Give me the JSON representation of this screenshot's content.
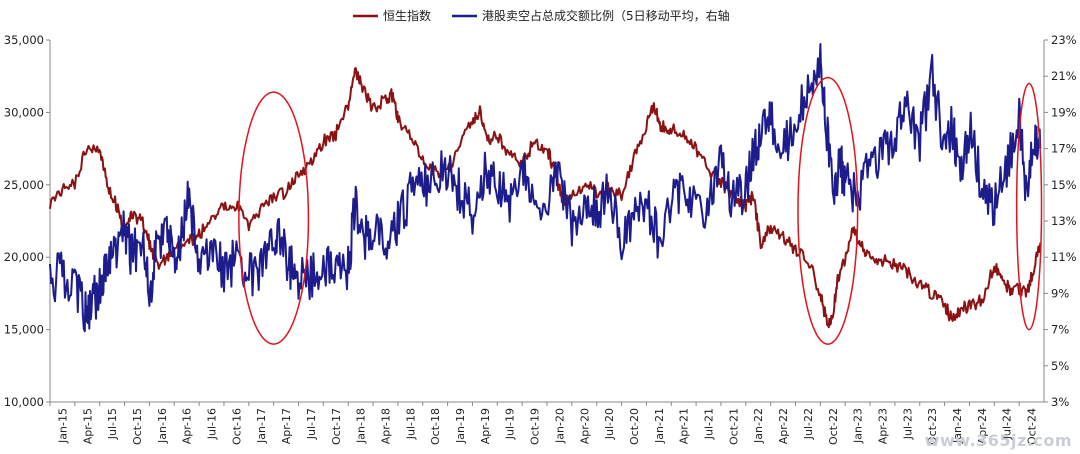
{
  "chart_data": {
    "type": "line",
    "legend": {
      "position": "top-center",
      "entries": [
        "恒生指数",
        "港股卖空占总成交额比例（5日移动平均，右轴"
      ]
    },
    "colors": {
      "hsi": "#8b1212",
      "short": "#1c1c8c",
      "ellipse": "#e0141e"
    },
    "y_left": {
      "min": 10000,
      "max": 35000,
      "ticks": [
        "10,000",
        "15,000",
        "20,000",
        "25,000",
        "30,000",
        "35,000"
      ]
    },
    "y_right": {
      "min": 3,
      "max": 23,
      "ticks": [
        "3%",
        "5%",
        "7%",
        "9%",
        "11%",
        "13%",
        "15%",
        "17%",
        "19%",
        "21%",
        "23%"
      ]
    },
    "categories": [
      "Jan-15",
      "Apr-15",
      "Jul-15",
      "Oct-15",
      "Jan-16",
      "Apr-16",
      "Jul-16",
      "Oct-16",
      "Jan-17",
      "Apr-17",
      "Jul-17",
      "Oct-17",
      "Jan-18",
      "Apr-18",
      "Jul-18",
      "Oct-18",
      "Jan-19",
      "Apr-19",
      "Jul-19",
      "Oct-19",
      "Jan-20",
      "Apr-20",
      "Jul-20",
      "Oct-20",
      "Jan-21",
      "Apr-21",
      "Jul-21",
      "Oct-21",
      "Jan-22",
      "Apr-22",
      "Jul-22",
      "Oct-22",
      "Jan-23",
      "Apr-23",
      "Jul-23",
      "Oct-23",
      "Jan-24",
      "Apr-24",
      "Jul-24",
      "Oct-24"
    ],
    "series": [
      {
        "name": "恒生指数",
        "axis": "left",
        "points": [
          [
            0,
            23800
          ],
          [
            0.5,
            24800
          ],
          [
            1,
            25000
          ],
          [
            1.5,
            27800
          ],
          [
            2,
            27500
          ],
          [
            2.3,
            25000
          ],
          [
            2.7,
            23500
          ],
          [
            3,
            21500
          ],
          [
            3.3,
            23000
          ],
          [
            3.7,
            22500
          ],
          [
            4,
            21000
          ],
          [
            4.3,
            19500
          ],
          [
            4.7,
            19800
          ],
          [
            5,
            20600
          ],
          [
            5.5,
            21000
          ],
          [
            6,
            21500
          ],
          [
            6.5,
            22800
          ],
          [
            7,
            23400
          ],
          [
            7.5,
            23600
          ],
          [
            8,
            22000
          ],
          [
            8.5,
            23300
          ],
          [
            9,
            24200
          ],
          [
            9.5,
            24500
          ],
          [
            10,
            25800
          ],
          [
            10.5,
            26500
          ],
          [
            11,
            28000
          ],
          [
            11.5,
            28500
          ],
          [
            12,
            30500
          ],
          [
            12.3,
            33000
          ],
          [
            12.6,
            31500
          ],
          [
            13,
            30200
          ],
          [
            13.5,
            31000
          ],
          [
            13.8,
            31200
          ],
          [
            14,
            29500
          ],
          [
            14.5,
            28500
          ],
          [
            15,
            26600
          ],
          [
            15.5,
            26000
          ],
          [
            16,
            25800
          ],
          [
            16.5,
            27800
          ],
          [
            17,
            29500
          ],
          [
            17.3,
            30000
          ],
          [
            17.6,
            28000
          ],
          [
            18,
            28500
          ],
          [
            18.5,
            27000
          ],
          [
            19,
            26500
          ],
          [
            19.5,
            28000
          ],
          [
            20,
            27500
          ],
          [
            20.3,
            26000
          ],
          [
            20.6,
            24000
          ],
          [
            21,
            24200
          ],
          [
            21.5,
            25000
          ],
          [
            22,
            24500
          ],
          [
            22.5,
            24800
          ],
          [
            23,
            24200
          ],
          [
            23.5,
            26800
          ],
          [
            24,
            29000
          ],
          [
            24.3,
            30500
          ],
          [
            24.6,
            29000
          ],
          [
            25,
            28800
          ],
          [
            25.5,
            28500
          ],
          [
            26,
            27500
          ],
          [
            26.5,
            26000
          ],
          [
            27,
            25200
          ],
          [
            27.5,
            24200
          ],
          [
            28,
            23500
          ],
          [
            28.3,
            24200
          ],
          [
            28.6,
            21000
          ],
          [
            29,
            22000
          ],
          [
            29.5,
            21500
          ],
          [
            30,
            20500
          ],
          [
            30.5,
            19800
          ],
          [
            31,
            17500
          ],
          [
            31.3,
            15200
          ],
          [
            31.5,
            16000
          ],
          [
            31.7,
            18500
          ],
          [
            32,
            20000
          ],
          [
            32.3,
            22000
          ],
          [
            32.6,
            21000
          ],
          [
            33,
            19800
          ],
          [
            33.5,
            19800
          ],
          [
            34,
            19500
          ],
          [
            34.5,
            19000
          ],
          [
            35,
            18000
          ],
          [
            35.5,
            17500
          ],
          [
            36,
            16800
          ],
          [
            36.3,
            15600
          ],
          [
            36.6,
            16300
          ],
          [
            37,
            16700
          ],
          [
            37.5,
            17000
          ],
          [
            38,
            19500
          ],
          [
            38.3,
            18500
          ],
          [
            38.6,
            17800
          ],
          [
            39,
            17800
          ],
          [
            39.3,
            17500
          ],
          [
            39.6,
            19200
          ],
          [
            39.85,
            21000
          ]
        ]
      },
      {
        "name": "港股卖空占总成交额比例（5日移动平均，右轴",
        "axis": "right",
        "points": [
          [
            0,
            9.5
          ],
          [
            0.5,
            10.2
          ],
          [
            1,
            9.5
          ],
          [
            1.4,
            8.0
          ],
          [
            1.7,
            8.5
          ],
          [
            2,
            9.3
          ],
          [
            2.3,
            10.5
          ],
          [
            2.6,
            11.3
          ],
          [
            3,
            12.5
          ],
          [
            3.3,
            11.0
          ],
          [
            3.7,
            12.2
          ],
          [
            4,
            9.0
          ],
          [
            4.3,
            11.5
          ],
          [
            4.7,
            12.5
          ],
          [
            5,
            10.5
          ],
          [
            5.3,
            12.2
          ],
          [
            5.6,
            14.5
          ],
          [
            6,
            10.8
          ],
          [
            6.5,
            11.2
          ],
          [
            7,
            10.3
          ],
          [
            7.5,
            10.8
          ],
          [
            8,
            10.0
          ],
          [
            8.5,
            10.5
          ],
          [
            9,
            11.5
          ],
          [
            9.3,
            12.3
          ],
          [
            9.6,
            10.5
          ],
          [
            10,
            10.0
          ],
          [
            10.5,
            9.8
          ],
          [
            11,
            10.5
          ],
          [
            11.5,
            10.0
          ],
          [
            12,
            10.5
          ],
          [
            12.3,
            14.0
          ],
          [
            12.6,
            12.0
          ],
          [
            13,
            12.5
          ],
          [
            13.5,
            11.5
          ],
          [
            14,
            12.8
          ],
          [
            14.5,
            14.5
          ],
          [
            15,
            15.0
          ],
          [
            15.5,
            15.2
          ],
          [
            16,
            16.0
          ],
          [
            16.5,
            14.5
          ],
          [
            17,
            13.2
          ],
          [
            17.5,
            16.0
          ],
          [
            18,
            15.0
          ],
          [
            18.5,
            14.0
          ],
          [
            19,
            16.5
          ],
          [
            19.5,
            14.2
          ],
          [
            20,
            14.0
          ],
          [
            20.5,
            15.5
          ],
          [
            21,
            12.5
          ],
          [
            21.5,
            14.0
          ],
          [
            22,
            13.5
          ],
          [
            22.5,
            14.5
          ],
          [
            23,
            12.0
          ],
          [
            23.5,
            13.5
          ],
          [
            24,
            14.2
          ],
          [
            24.5,
            12.0
          ],
          [
            25,
            13.8
          ],
          [
            25.5,
            14.8
          ],
          [
            26,
            13.5
          ],
          [
            26.5,
            14.0
          ],
          [
            27,
            16.5
          ],
          [
            27.5,
            14.0
          ],
          [
            28,
            14.5
          ],
          [
            28.3,
            16.8
          ],
          [
            28.6,
            17.5
          ],
          [
            29,
            18.8
          ],
          [
            29.5,
            17.0
          ],
          [
            30,
            18.5
          ],
          [
            30.5,
            20.0
          ],
          [
            31,
            21.5
          ],
          [
            31.2,
            19.0
          ],
          [
            31.5,
            15.0
          ],
          [
            31.8,
            16.0
          ],
          [
            32,
            15.5
          ],
          [
            32.5,
            14.2
          ],
          [
            33,
            16.0
          ],
          [
            33.5,
            16.8
          ],
          [
            34,
            18.0
          ],
          [
            34.5,
            19.0
          ],
          [
            35,
            17.5
          ],
          [
            35.5,
            21.0
          ],
          [
            36,
            17.0
          ],
          [
            36.3,
            18.5
          ],
          [
            36.6,
            16.0
          ],
          [
            37,
            18.0
          ],
          [
            37.5,
            15.0
          ],
          [
            38,
            13.8
          ],
          [
            38.5,
            16.0
          ],
          [
            39,
            18.5
          ],
          [
            39.3,
            14.5
          ],
          [
            39.6,
            18.0
          ],
          [
            39.85,
            17.0
          ]
        ]
      }
    ],
    "annotations": [
      {
        "shape": "ellipse",
        "center_x_category": 9.0,
        "center_y_left": 22700,
        "rx_categories": 1.4,
        "ry_left": 8700
      },
      {
        "shape": "ellipse",
        "center_x_category": 31.3,
        "center_y_left": 23200,
        "rx_categories": 1.2,
        "ry_left": 9200
      },
      {
        "shape": "ellipse",
        "center_x_category": 39.4,
        "center_y_left": 23500,
        "rx_categories": 0.5,
        "ry_left": 8500
      }
    ]
  },
  "watermark": "www.365jz.com"
}
